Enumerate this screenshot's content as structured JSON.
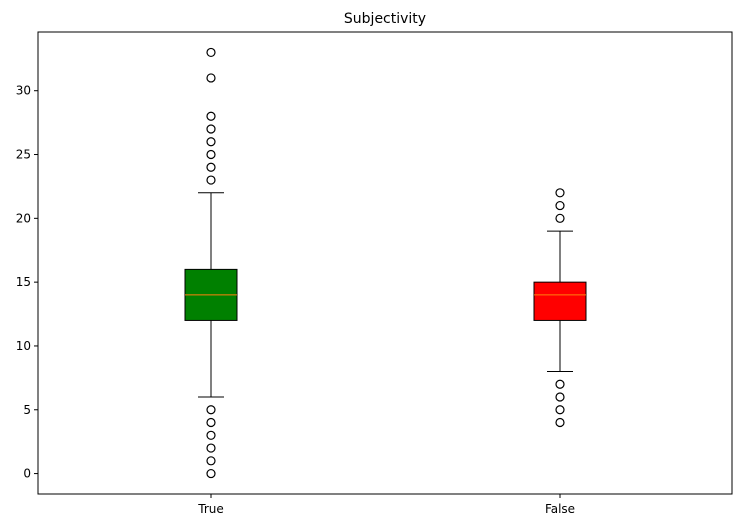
{
  "chart_data": {
    "type": "box",
    "title": "Subjectivity",
    "xlabel": "",
    "ylabel": "",
    "categories": [
      "True",
      "False"
    ],
    "ylim": [
      -1.6,
      34.6
    ],
    "yticks": [
      0,
      5,
      10,
      15,
      20,
      25,
      30
    ],
    "grid": false,
    "boxes": [
      {
        "category": "True",
        "color": "#008000",
        "median_color": "#ff7f0e",
        "q1": 12,
        "median": 14,
        "q3": 16,
        "whisker_low": 6,
        "whisker_high": 22,
        "outliers": [
          0,
          1,
          2,
          3,
          4,
          5,
          23,
          24,
          25,
          26,
          27,
          28,
          31,
          33
        ]
      },
      {
        "category": "False",
        "color": "#ff0000",
        "median_color": "#ff7f0e",
        "q1": 12,
        "median": 14,
        "q3": 15,
        "whisker_low": 8,
        "whisker_high": 19,
        "outliers": [
          4,
          5,
          6,
          7,
          20,
          21,
          22
        ]
      }
    ]
  }
}
